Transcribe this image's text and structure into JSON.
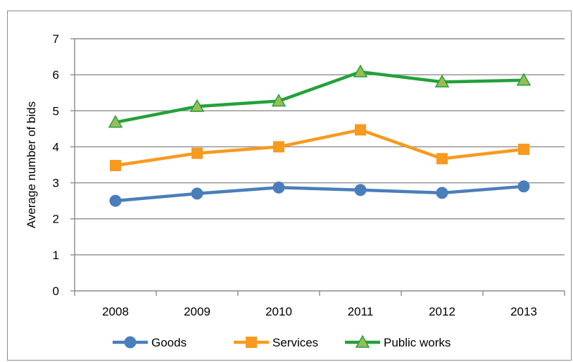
{
  "chart_data": {
    "type": "line",
    "categories": [
      "2008",
      "2009",
      "2010",
      "2011",
      "2012",
      "2013"
    ],
    "series": [
      {
        "name": "Goods",
        "values": [
          2.5,
          2.7,
          2.87,
          2.8,
          2.72,
          2.9
        ],
        "color": "#4a7ebb",
        "marker": "circle"
      },
      {
        "name": "Services",
        "values": [
          3.48,
          3.82,
          4.0,
          4.47,
          3.67,
          3.93
        ],
        "color": "#f79a1f",
        "marker": "square"
      },
      {
        "name": "Public works",
        "values": [
          4.68,
          5.12,
          5.27,
          6.08,
          5.8,
          5.85
        ],
        "color": "#23a13a",
        "marker": "triangle",
        "marker_fill": "#9bbb59"
      }
    ],
    "yticks": [
      "0",
      "1",
      "2",
      "3",
      "4",
      "5",
      "6",
      "7"
    ],
    "ylabel": "Average number of bids",
    "xlabel": "",
    "title": "",
    "ylim": [
      0,
      7
    ],
    "grid": true,
    "legend_position": "bottom"
  }
}
